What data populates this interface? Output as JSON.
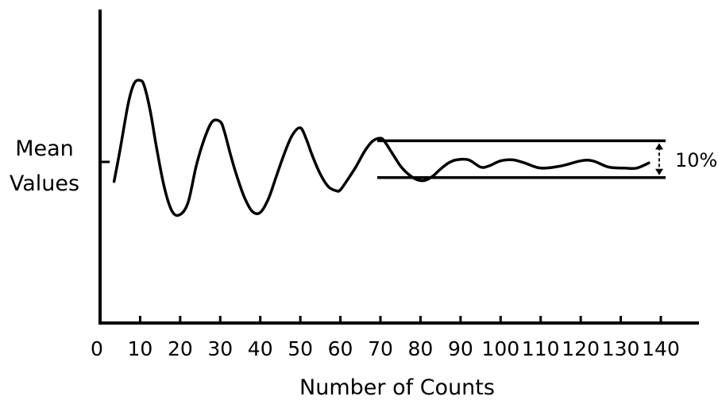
{
  "chart_data": {
    "type": "line",
    "title": "",
    "xlabel": "Number of Counts",
    "ylabel_lines": [
      "Mean",
      "Values"
    ],
    "xlim": [
      0,
      140
    ],
    "ylim": [
      -4,
      4
    ],
    "xticks": [
      0,
      10,
      20,
      30,
      40,
      50,
      60,
      70,
      80,
      90,
      100,
      110,
      120,
      130,
      140
    ],
    "grid": false,
    "series": [
      {
        "x": [
          3.5,
          5,
          7,
          8.5,
          10,
          11,
          12.5,
          14,
          16,
          18,
          20,
          22,
          24,
          26,
          28,
          30,
          31,
          32.5,
          34,
          36,
          38,
          40,
          42,
          44,
          46,
          48,
          50,
          51.5,
          53,
          55,
          57,
          59,
          60,
          62,
          64,
          66,
          68,
          70,
          71,
          73,
          75,
          77,
          79,
          81,
          83,
          85,
          87,
          89,
          92,
          95,
          97,
          100,
          103,
          106,
          110,
          115,
          120,
          123,
          127,
          131,
          134,
          137
        ],
        "y": [
          -0.95,
          0.6,
          2.8,
          3.8,
          3.95,
          3.7,
          2.5,
          0.8,
          -1.2,
          -2.4,
          -2.55,
          -1.95,
          -0.2,
          1.1,
          1.95,
          1.95,
          1.5,
          0.4,
          -0.6,
          -1.7,
          -2.4,
          -2.45,
          -1.8,
          -0.7,
          0.4,
          1.3,
          1.65,
          1.1,
          0.3,
          -0.6,
          -1.2,
          -1.4,
          -1.35,
          -0.8,
          -0.2,
          0.5,
          1.0,
          1.15,
          1.0,
          0.4,
          -0.2,
          -0.6,
          -0.85,
          -0.9,
          -0.7,
          -0.35,
          -0.05,
          0.1,
          0.1,
          -0.25,
          -0.2,
          0.05,
          0.1,
          -0.05,
          -0.3,
          -0.2,
          0.05,
          0.05,
          -0.25,
          -0.3,
          -0.3,
          -0.05
        ]
      }
    ],
    "band": {
      "x_start": 70,
      "x_end": 140,
      "upper": 1.1,
      "lower": -0.8,
      "label": "10%"
    }
  }
}
